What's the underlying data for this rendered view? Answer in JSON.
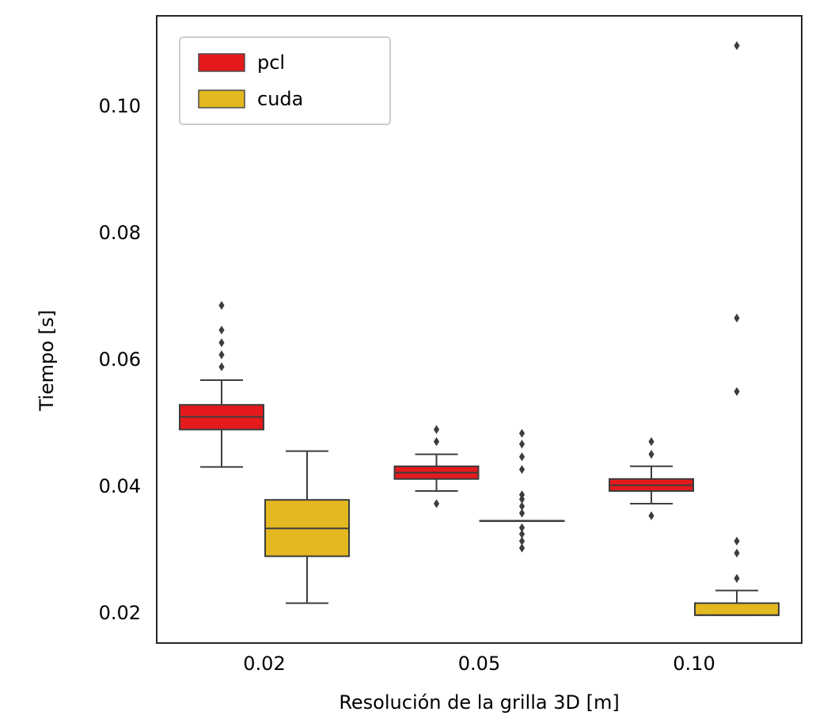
{
  "chart_data": {
    "type": "boxplot",
    "title": "",
    "xlabel": "Resolución de la grilla 3D [m]",
    "ylabel": "Tiempo [s]",
    "categories": [
      "0.02",
      "0.05",
      "0.10"
    ],
    "yticks": [
      "0.02",
      "0.04",
      "0.06",
      "0.08",
      "0.10"
    ],
    "ytick_values": [
      0.02,
      0.04,
      0.06,
      0.08,
      0.1
    ],
    "ylim": [
      0.0151,
      0.1141
    ],
    "grid": false,
    "legend_position": "top-left",
    "series": [
      {
        "name": "pcl",
        "color": "#e41a1c",
        "boxes": [
          {
            "whisker_low": 0.0429,
            "q1": 0.0488,
            "median": 0.0508,
            "q3": 0.0527,
            "whisker_high": 0.0566,
            "outliers": [
              0.0587,
              0.0606,
              0.0625,
              0.0645,
              0.0684
            ]
          },
          {
            "whisker_low": 0.0391,
            "q1": 0.041,
            "median": 0.042,
            "q3": 0.043,
            "whisker_high": 0.0449,
            "outliers": [
              0.0371,
              0.0469,
              0.0488
            ]
          },
          {
            "whisker_low": 0.0371,
            "q1": 0.0391,
            "median": 0.04,
            "q3": 0.041,
            "whisker_high": 0.043,
            "outliers": [
              0.0352,
              0.0449,
              0.0469
            ]
          }
        ]
      },
      {
        "name": "cuda",
        "color": "#e3b820",
        "boxes": [
          {
            "whisker_low": 0.0214,
            "q1": 0.0288,
            "median": 0.0332,
            "q3": 0.0377,
            "whisker_high": 0.0454,
            "outliers": []
          },
          {
            "whisker_low": 0.0344,
            "q1": 0.0344,
            "median": 0.0344,
            "q3": 0.0344,
            "whisker_high": 0.0344,
            "outliers": [
              0.0301,
              0.0312,
              0.0323,
              0.0333,
              0.0356,
              0.0367,
              0.0378,
              0.0385,
              0.0425,
              0.0445,
              0.0465,
              0.0482
            ]
          },
          {
            "whisker_low": 0.0195,
            "q1": 0.0195,
            "median": 0.0195,
            "q3": 0.0214,
            "whisker_high": 0.0234,
            "outliers": [
              0.0253,
              0.0293,
              0.0312,
              0.0548,
              0.0664,
              0.1094
            ]
          }
        ]
      }
    ]
  }
}
